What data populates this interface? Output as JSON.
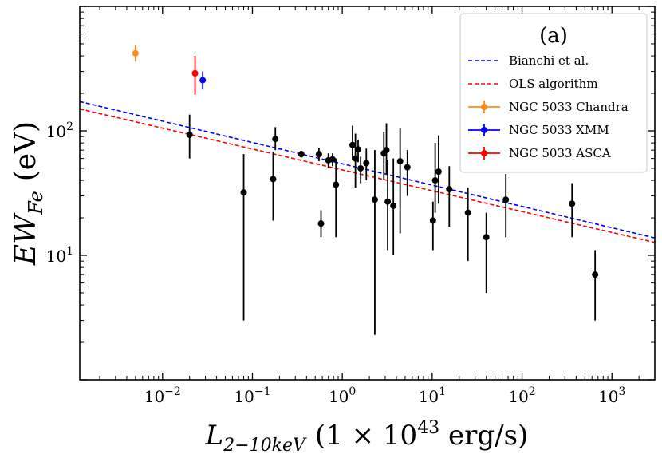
{
  "chart_data": {
    "type": "scatter",
    "xscale": "log",
    "yscale": "log",
    "xlim": [
      0.0012,
      3000
    ],
    "ylim": [
      1,
      1000
    ],
    "xlabel_parts": {
      "var": "L",
      "sub": "2−10keV",
      "paren": "(1 × 10",
      "exp": "43",
      "unit": " erg/s)"
    },
    "ylabel_parts": {
      "var": "EW",
      "sub": "Fe",
      "unit": "(eV)"
    },
    "x_ticks": [
      {
        "value": 0.01,
        "base": "10",
        "exp": "−2"
      },
      {
        "value": 0.1,
        "base": "10",
        "exp": "−1"
      },
      {
        "value": 1,
        "base": "10",
        "exp": "0"
      },
      {
        "value": 10,
        "base": "10",
        "exp": "1"
      },
      {
        "value": 100,
        "base": "10",
        "exp": "2"
      },
      {
        "value": 1000,
        "base": "10",
        "exp": "3"
      }
    ],
    "y_ticks": [
      {
        "value": 10,
        "base": "10",
        "exp": "1"
      },
      {
        "value": 100,
        "base": "10",
        "exp": "2"
      }
    ],
    "legend": {
      "title": "(a)",
      "position": "top-right",
      "entries": [
        {
          "label": "Bianchi et al.",
          "kind": "dashed",
          "color": "#0000ff"
        },
        {
          "label": "OLS algorithm",
          "kind": "dashed",
          "color": "#ff0000"
        },
        {
          "label": "NGC 5033 Chandra",
          "kind": "errorbar",
          "color": "#ff8c1a"
        },
        {
          "label": "NGC 5033 XMM",
          "kind": "errorbar",
          "color": "#0000ff"
        },
        {
          "label": "NGC 5033 ASCA",
          "kind": "errorbar",
          "color": "#ff0000"
        }
      ]
    },
    "fit_lines": [
      {
        "label": "Bianchi et al.",
        "color": "#0000ff",
        "points": [
          [
            0.0012,
            172
          ],
          [
            3000,
            13.8
          ]
        ]
      },
      {
        "label": "OLS algorithm",
        "color": "#ff0000",
        "points": [
          [
            0.0012,
            150
          ],
          [
            3000,
            12.7
          ]
        ]
      }
    ],
    "highlight_points": [
      {
        "label": "NGC 5033 Chandra",
        "color": "#ff8c1a",
        "x": 0.005,
        "y": 420,
        "ylo": 360,
        "yhi": 490
      },
      {
        "label": "NGC 5033 XMM",
        "color": "#0000ff",
        "x": 0.028,
        "y": 255,
        "ylo": 215,
        "yhi": 300
      },
      {
        "label": "NGC 5033 ASCA",
        "color": "#ff0000",
        "x": 0.023,
        "y": 290,
        "ylo": 195,
        "yhi": 400
      }
    ],
    "sample_color": "#000000",
    "sample_points": [
      {
        "x": 0.02,
        "y": 93,
        "ylo": 60,
        "yhi": 135
      },
      {
        "x": 0.08,
        "y": 32,
        "ylo": 3,
        "yhi": 65
      },
      {
        "x": 0.17,
        "y": 41,
        "ylo": 19,
        "yhi": 68
      },
      {
        "x": 0.18,
        "y": 86,
        "ylo": 70,
        "yhi": 107
      },
      {
        "x": 0.35,
        "y": 65,
        "ylo": 61,
        "yhi": 69
      },
      {
        "x": 0.55,
        "y": 65,
        "ylo": 57,
        "yhi": 73
      },
      {
        "x": 0.58,
        "y": 18,
        "ylo": 14,
        "yhi": 23
      },
      {
        "x": 0.7,
        "y": 58,
        "ylo": 50,
        "yhi": 66
      },
      {
        "x": 0.78,
        "y": 59,
        "ylo": 52,
        "yhi": 66
      },
      {
        "x": 0.85,
        "y": 37,
        "ylo": 14,
        "yhi": 60
      },
      {
        "x": 1.3,
        "y": 77,
        "ylo": 58,
        "yhi": 110
      },
      {
        "x": 1.4,
        "y": 60,
        "ylo": 35,
        "yhi": 95
      },
      {
        "x": 1.5,
        "y": 71,
        "ylo": 56,
        "yhi": 85
      },
      {
        "x": 1.6,
        "y": 50,
        "ylo": 38,
        "yhi": 62
      },
      {
        "x": 1.85,
        "y": 55,
        "ylo": 40,
        "yhi": 72
      },
      {
        "x": 2.3,
        "y": 28,
        "ylo": 2.3,
        "yhi": 70
      },
      {
        "x": 2.9,
        "y": 66,
        "ylo": 40,
        "yhi": 98
      },
      {
        "x": 3.1,
        "y": 70,
        "ylo": 45,
        "yhi": 115
      },
      {
        "x": 3.2,
        "y": 27,
        "ylo": 11,
        "yhi": 58
      },
      {
        "x": 3.7,
        "y": 25,
        "ylo": 10,
        "yhi": 60
      },
      {
        "x": 4.4,
        "y": 57,
        "ylo": 15,
        "yhi": 105
      },
      {
        "x": 5.3,
        "y": 51,
        "ylo": 30,
        "yhi": 70
      },
      {
        "x": 10.2,
        "y": 19,
        "ylo": 11,
        "yhi": 27
      },
      {
        "x": 10.8,
        "y": 40,
        "ylo": 22,
        "yhi": 80
      },
      {
        "x": 11.8,
        "y": 47,
        "ylo": 26,
        "yhi": 92
      },
      {
        "x": 15.5,
        "y": 34,
        "ylo": 17,
        "yhi": 52
      },
      {
        "x": 25,
        "y": 22,
        "ylo": 9,
        "yhi": 35
      },
      {
        "x": 40,
        "y": 14,
        "ylo": 5,
        "yhi": 22
      },
      {
        "x": 66,
        "y": 28,
        "ylo": 14,
        "yhi": 45
      },
      {
        "x": 360,
        "y": 26,
        "ylo": 14,
        "yhi": 38
      },
      {
        "x": 650,
        "y": 7,
        "ylo": 3,
        "yhi": 11
      }
    ]
  }
}
